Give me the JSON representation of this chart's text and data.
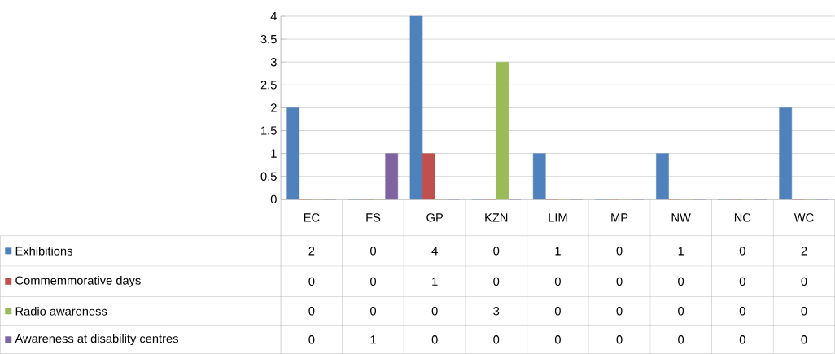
{
  "chart_data": {
    "type": "bar",
    "categories": [
      "EC",
      "FS",
      "GP",
      "KZN",
      "LIM",
      "MP",
      "NW",
      "NC",
      "WC"
    ],
    "series": [
      {
        "name": "Exhibitions",
        "color": "#4f81bd",
        "values": [
          2,
          0,
          4,
          0,
          1,
          0,
          1,
          0,
          2
        ]
      },
      {
        "name": "Commemmorative days",
        "color": "#c0504d",
        "values": [
          0,
          0,
          1,
          0,
          0,
          0,
          0,
          0,
          0
        ]
      },
      {
        "name": "Radio awareness",
        "color": "#9bbb59",
        "values": [
          0,
          0,
          0,
          3,
          0,
          0,
          0,
          0,
          0
        ]
      },
      {
        "name": "Awareness at disability centres",
        "color": "#8064a2",
        "values": [
          0,
          1,
          0,
          0,
          0,
          0,
          0,
          0,
          0
        ]
      }
    ],
    "ylim": [
      0,
      4
    ],
    "yticks": [
      0,
      0.5,
      1,
      1.5,
      2,
      2.5,
      3,
      3.5,
      4
    ],
    "grid": "y",
    "legend": "bottom",
    "data_labels": true
  }
}
